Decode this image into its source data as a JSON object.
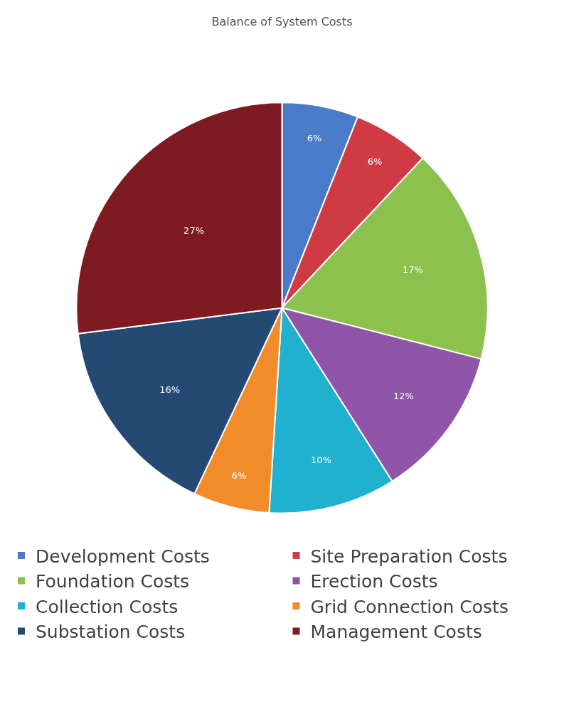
{
  "chart_data": {
    "type": "pie",
    "title": "Balance of System Costs",
    "categories": [
      "Development Costs",
      "Site Preparation Costs",
      "Foundation Costs",
      "Erection Costs",
      "Collection Costs",
      "Grid Connection Costs",
      "Substation Costs",
      "Management Costs"
    ],
    "values": [
      6,
      6,
      17,
      12,
      10,
      6,
      16,
      27
    ],
    "value_labels": [
      "6%",
      "6%",
      "17%",
      "12%",
      "10%",
      "6%",
      "16%",
      "27%"
    ],
    "colors": [
      "#4a7bc8",
      "#d03a45",
      "#8dc14d",
      "#8e55a8",
      "#1fb1cf",
      "#f28c2b",
      "#244a73",
      "#7e1a22"
    ],
    "legend": "bottom"
  }
}
